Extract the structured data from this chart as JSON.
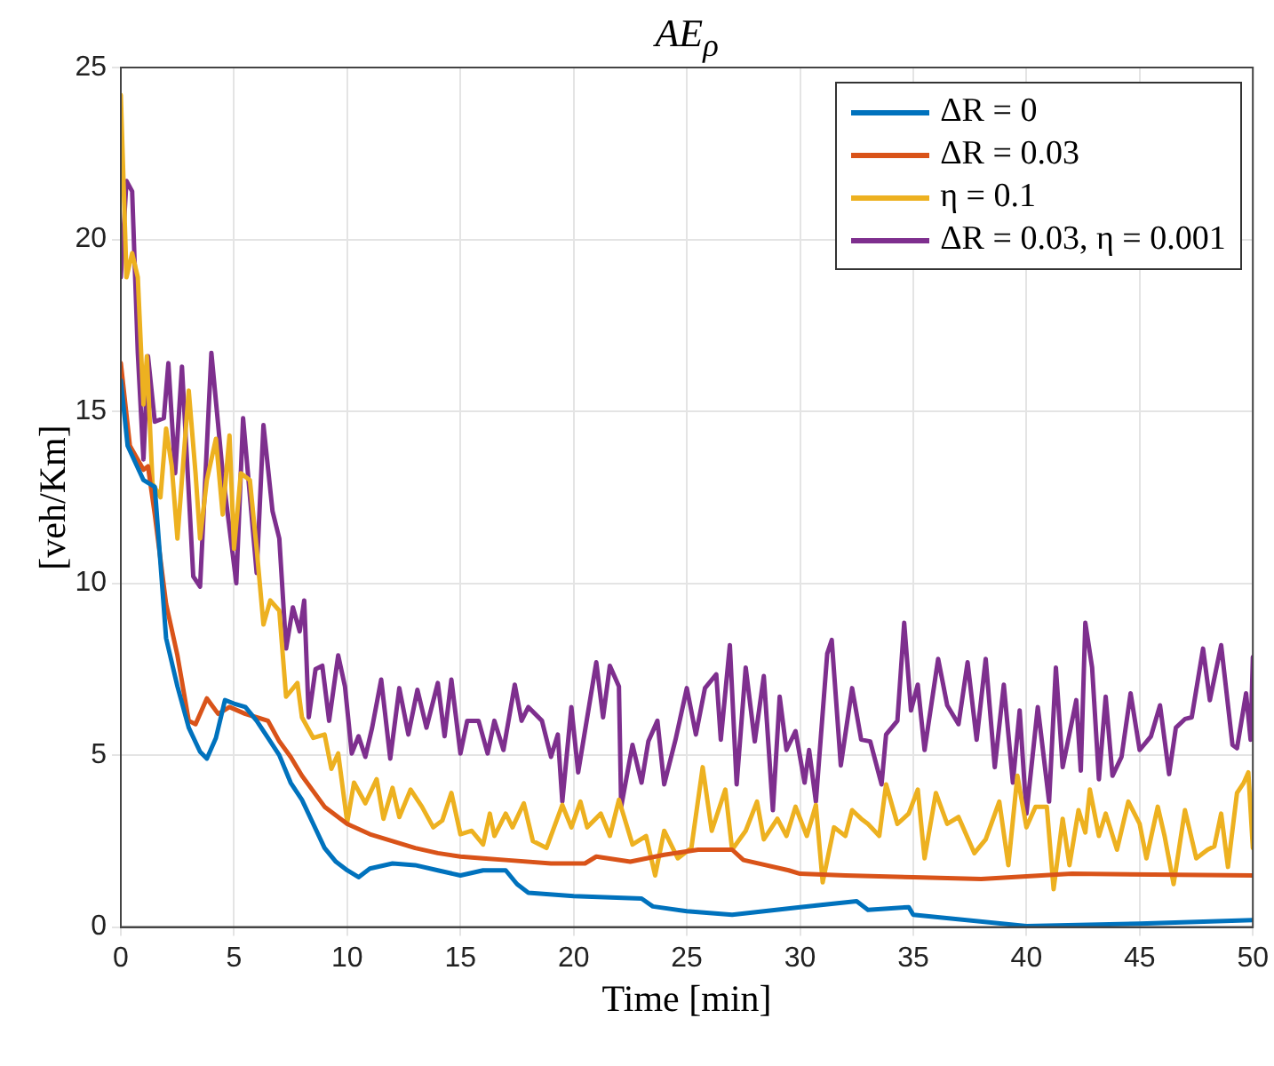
{
  "chart_data": {
    "type": "line",
    "title": "AE$_{ρ}$",
    "xlabel": "Time [min]",
    "ylabel": "[veh/Km]",
    "xlim": [
      0,
      50
    ],
    "xticks": [
      0,
      5,
      10,
      15,
      20,
      25,
      30,
      35,
      40,
      45,
      50
    ],
    "ylim": [
      0,
      25
    ],
    "yticks": [
      0,
      5,
      10,
      15,
      20,
      25
    ],
    "grid": true,
    "legend": "top right",
    "marker": "none",
    "line_style": "solid",
    "series": [
      {
        "name": "ΔR = 0",
        "color": "#0072bd",
        "x": [
          0,
          0.3,
          1,
          1.5,
          2,
          2.5,
          3,
          3.5,
          3.8,
          4.2,
          4.6,
          5,
          5.5,
          6,
          6.5,
          7,
          7.5,
          8,
          8.5,
          9,
          9.5,
          10,
          10.5,
          11,
          12,
          13,
          14,
          15,
          16,
          17,
          17.5,
          18,
          20,
          23,
          23.5,
          25,
          27,
          30,
          32.5,
          33,
          34.8,
          35,
          40,
          45,
          50
        ],
        "values": [
          15.9,
          14,
          13,
          12.8,
          8.4,
          7,
          5.8,
          5.1,
          4.9,
          5.5,
          6.6,
          6.5,
          6.4,
          6,
          5.5,
          5,
          4.2,
          3.7,
          3,
          2.3,
          1.9,
          1.65,
          1.45,
          1.7,
          1.85,
          1.8,
          1.65,
          1.5,
          1.65,
          1.65,
          1.25,
          1,
          0.9,
          0.83,
          0.6,
          0.46,
          0.36,
          0.58,
          0.75,
          0.5,
          0.58,
          0.36,
          0.03,
          0.1,
          0.2
        ]
      },
      {
        "name": "ΔR = 0.03",
        "color": "#d95319",
        "x": [
          0,
          0.4,
          1,
          1.2,
          1.5,
          2,
          2.5,
          3,
          3.3,
          3.8,
          4.3,
          4.8,
          5.5,
          6,
          6.5,
          7,
          7.5,
          8,
          9,
          10,
          11,
          12,
          13,
          14,
          15,
          16,
          17,
          19,
          20.5,
          21,
          22.5,
          24,
          25.5,
          27,
          27.5,
          29.5,
          30,
          32,
          35,
          38,
          42,
          50
        ],
        "values": [
          16.4,
          14,
          13.3,
          13.4,
          12,
          9.4,
          7.9,
          6,
          5.9,
          6.65,
          6.2,
          6.4,
          6.2,
          6.1,
          6,
          5.4,
          4.95,
          4.4,
          3.5,
          3,
          2.7,
          2.5,
          2.3,
          2.15,
          2.05,
          2,
          1.95,
          1.85,
          1.85,
          2.05,
          1.9,
          2.1,
          2.25,
          2.25,
          1.95,
          1.65,
          1.55,
          1.5,
          1.45,
          1.4,
          1.55,
          1.5
        ]
      },
      {
        "name": "η = 0.1",
        "color": "#edb120",
        "x": [
          0,
          0.25,
          0.5,
          0.75,
          1,
          1.15,
          1.4,
          1.75,
          2,
          2.25,
          2.5,
          3,
          3.3,
          3.5,
          3.8,
          4.2,
          4.5,
          4.8,
          5,
          5.3,
          5.7,
          6,
          6.3,
          6.6,
          7,
          7.3,
          7.8,
          8,
          8.5,
          9,
          9.3,
          9.6,
          10,
          10.3,
          10.8,
          11.3,
          11.6,
          12,
          12.3,
          12.8,
          13.3,
          13.8,
          14.2,
          14.6,
          15,
          15.5,
          16,
          16.3,
          16.5,
          17,
          17.3,
          17.8,
          18.2,
          18.8,
          19.5,
          19.9,
          20.3,
          20.6,
          21.2,
          21.6,
          22,
          22.6,
          23.2,
          23.6,
          24,
          24.6,
          25.2,
          25.7,
          26.1,
          26.7,
          27,
          27.6,
          28.1,
          28.4,
          29,
          29.4,
          29.8,
          30.3,
          30.7,
          31,
          31.5,
          32,
          32.3,
          32.7,
          33,
          33.5,
          33.8,
          34.3,
          34.8,
          35.2,
          35.5,
          36,
          36.5,
          37,
          37.7,
          38.2,
          38.8,
          39.2,
          39.6,
          40,
          40.4,
          40.9,
          41.2,
          41.6,
          41.9,
          42.3,
          42.6,
          42.8,
          43.2,
          43.5,
          44,
          44.5,
          45,
          45.3,
          45.8,
          46.1,
          46.5,
          47,
          47.5,
          48,
          48.3,
          48.6,
          48.9,
          49.3,
          49.6,
          49.8,
          50
        ],
        "values": [
          24.2,
          18.9,
          19.6,
          18.9,
          15.2,
          16.6,
          12.9,
          12.5,
          14.5,
          13.4,
          11.3,
          15.6,
          13.2,
          11.3,
          13,
          14.2,
          12,
          14.3,
          11,
          13.2,
          13,
          11,
          8.8,
          9.5,
          9.2,
          6.7,
          7.1,
          6.1,
          5.5,
          5.6,
          4.6,
          5.05,
          3.05,
          4.2,
          3.6,
          4.3,
          3.15,
          4.05,
          3.2,
          4,
          3.5,
          2.9,
          3.1,
          3.9,
          2.7,
          2.8,
          2.4,
          3.3,
          2.65,
          3.3,
          2.9,
          3.6,
          2.5,
          2.3,
          3.55,
          2.9,
          3.65,
          2.9,
          3.3,
          2.65,
          3.7,
          2.4,
          2.65,
          1.5,
          2.8,
          2,
          2.3,
          4.65,
          2.8,
          4,
          2.25,
          2.8,
          3.65,
          2.55,
          3.15,
          2.65,
          3.5,
          2.65,
          3.55,
          1.3,
          2.9,
          2.65,
          3.4,
          3.15,
          3,
          2.65,
          4.15,
          3,
          3.3,
          4,
          2,
          3.9,
          3,
          3.2,
          2.15,
          2.55,
          3.65,
          1.8,
          4.4,
          2.9,
          3.5,
          3.5,
          1.1,
          3.15,
          1.8,
          3.4,
          2.75,
          4,
          2.65,
          3.3,
          2.25,
          3.65,
          3,
          2,
          3.5,
          2.65,
          1.25,
          3.4,
          2,
          2.25,
          2.35,
          3.3,
          1.75,
          3.9,
          4.2,
          4.5,
          2.3
        ]
      },
      {
        "name": "ΔR = 0.03, η = 0.001",
        "color": "#7e2f8e",
        "x": [
          0,
          0.25,
          0.5,
          0.75,
          1,
          1.2,
          1.5,
          1.9,
          2.1,
          2.4,
          2.7,
          3.2,
          3.5,
          4,
          4.5,
          5.1,
          5.4,
          6,
          6.3,
          6.7,
          7,
          7.3,
          7.6,
          7.9,
          8.1,
          8.3,
          8.6,
          8.9,
          9.2,
          9.6,
          9.9,
          10.2,
          10.5,
          10.8,
          11.1,
          11.5,
          11.9,
          12.3,
          12.7,
          13.1,
          13.5,
          14,
          14.3,
          14.6,
          15,
          15.3,
          15.8,
          16.2,
          16.5,
          16.9,
          17.4,
          17.7,
          18,
          18.6,
          19,
          19.3,
          19.5,
          19.9,
          20.2,
          20.6,
          21,
          21.3,
          21.6,
          22,
          22.1,
          22.6,
          23,
          23.3,
          23.7,
          24,
          24.5,
          25,
          25.4,
          25.8,
          26.3,
          26.5,
          26.9,
          27.2,
          27.6,
          28,
          28.4,
          28.8,
          29.1,
          29.4,
          29.8,
          30.2,
          30.4,
          30.7,
          31.2,
          31.4,
          31.8,
          32.3,
          32.7,
          33.1,
          33.6,
          33.8,
          34.3,
          34.6,
          34.9,
          35.2,
          35.5,
          36.1,
          36.5,
          37,
          37.4,
          37.8,
          38.2,
          38.6,
          39,
          39.4,
          39.7,
          40,
          40.5,
          41,
          41.3,
          41.6,
          42.2,
          42.4,
          42.6,
          42.9,
          43.2,
          43.5,
          43.8,
          44.2,
          44.6,
          45,
          45.5,
          45.9,
          46.3,
          46.6,
          47,
          47.3,
          47.8,
          48.1,
          48.6,
          49.1,
          49.3,
          49.7,
          49.9,
          50
        ],
        "values": [
          18.9,
          21.7,
          21.4,
          16.7,
          13.6,
          16.6,
          14.7,
          14.8,
          16.4,
          13.2,
          16.3,
          10.2,
          9.9,
          16.7,
          13.2,
          10,
          14.8,
          10.3,
          14.6,
          12.1,
          11.3,
          8.1,
          9.3,
          8.6,
          9.5,
          6.1,
          7.5,
          7.6,
          6,
          7.9,
          7,
          5.05,
          5.55,
          4.95,
          5.8,
          7.2,
          4.9,
          6.95,
          5.6,
          6.9,
          5.8,
          7.1,
          5.55,
          7.2,
          5.05,
          6,
          6,
          5.05,
          6,
          5.15,
          7.05,
          6,
          6.4,
          6,
          4.95,
          5.6,
          3.65,
          6.4,
          4.5,
          6.1,
          7.7,
          6.1,
          7.6,
          7,
          3.5,
          5.3,
          4.2,
          5.4,
          6,
          4.15,
          5.45,
          6.95,
          5.6,
          6.95,
          7.35,
          5.45,
          8.2,
          4.15,
          7.55,
          5.4,
          7.3,
          3.4,
          6.7,
          5.15,
          5.7,
          4.2,
          5.15,
          3.65,
          7.95,
          8.35,
          4.7,
          6.95,
          5.45,
          5.4,
          4.15,
          5.6,
          6,
          8.85,
          6.3,
          7.05,
          5.15,
          7.8,
          6.45,
          5.9,
          7.7,
          5.45,
          7.8,
          4.65,
          7.05,
          4.2,
          6.3,
          3.3,
          6.4,
          3.65,
          7.55,
          4.65,
          6.6,
          4.55,
          8.85,
          7.55,
          4.3,
          6.7,
          4.4,
          4.95,
          6.8,
          5.15,
          5.55,
          6.45,
          4.45,
          5.8,
          6.05,
          6.1,
          8.1,
          6.6,
          8.2,
          5.3,
          5.2,
          6.8,
          5.45,
          7.85
        ]
      }
    ]
  }
}
